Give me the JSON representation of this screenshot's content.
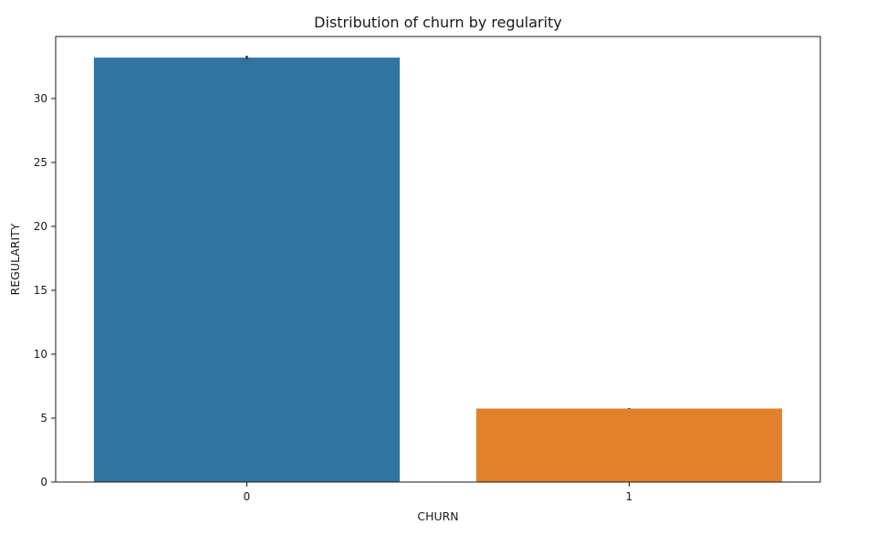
{
  "chart_data": {
    "type": "bar",
    "title": "Distribution of churn by regularity",
    "xlabel": "CHURN",
    "ylabel": "REGULARITY",
    "categories": [
      "0",
      "1"
    ],
    "values": [
      33.2,
      5.75
    ],
    "error_bars": [
      [
        33.05,
        33.35
      ],
      [
        5.72,
        5.78
      ]
    ],
    "colors": [
      "#3274a1",
      "#e1812c"
    ],
    "yticks": [
      0,
      5,
      10,
      15,
      20,
      25,
      30
    ],
    "ylim": [
      0,
      34.85
    ],
    "grid": false,
    "legend": "none"
  }
}
